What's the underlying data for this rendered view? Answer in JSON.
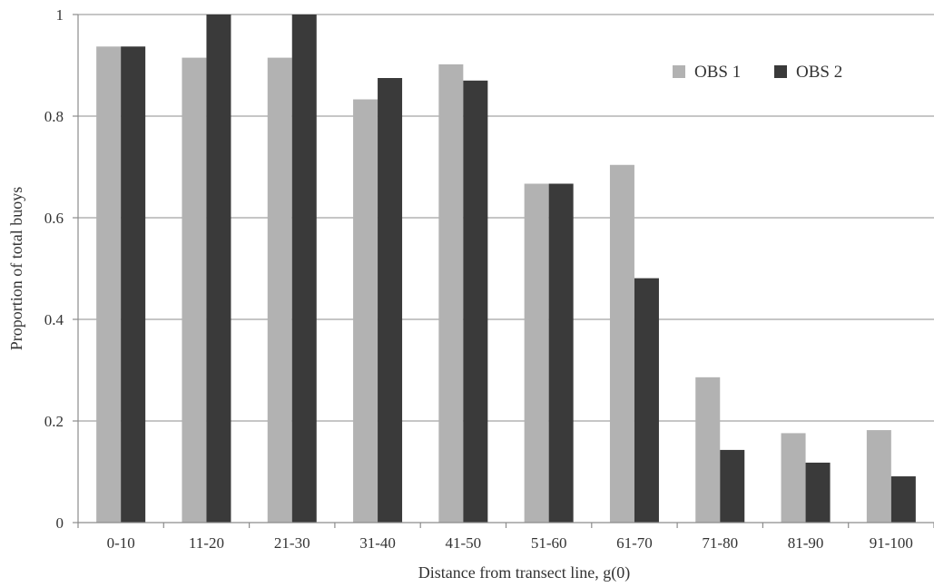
{
  "chart_data": {
    "type": "bar",
    "title": "",
    "xlabel": "Distance from transect line, g(0)",
    "ylabel": "Proportion of total buoys",
    "ylim": [
      0,
      1
    ],
    "yticks": [
      "0",
      "0.2",
      "0.4",
      "0.6",
      "0.8",
      "1"
    ],
    "ytick_values": [
      0,
      0.2,
      0.4,
      0.6,
      0.8,
      1.0
    ],
    "grid": true,
    "legend_position": "top-right",
    "categories": [
      "0-10",
      "11-20",
      "21-30",
      "31-40",
      "41-50",
      "51-60",
      "61-70",
      "71-80",
      "81-90",
      "91-100"
    ],
    "series": [
      {
        "name": "OBS 1",
        "color": "#b2b2b2",
        "values": [
          0.937,
          0.915,
          0.915,
          0.833,
          0.902,
          0.667,
          0.704,
          0.286,
          0.176,
          0.182
        ]
      },
      {
        "name": "OBS 2",
        "color": "#3a3a3a",
        "values": [
          0.937,
          1.0,
          1.0,
          0.875,
          0.87,
          0.667,
          0.481,
          0.143,
          0.118,
          0.091
        ]
      }
    ]
  }
}
